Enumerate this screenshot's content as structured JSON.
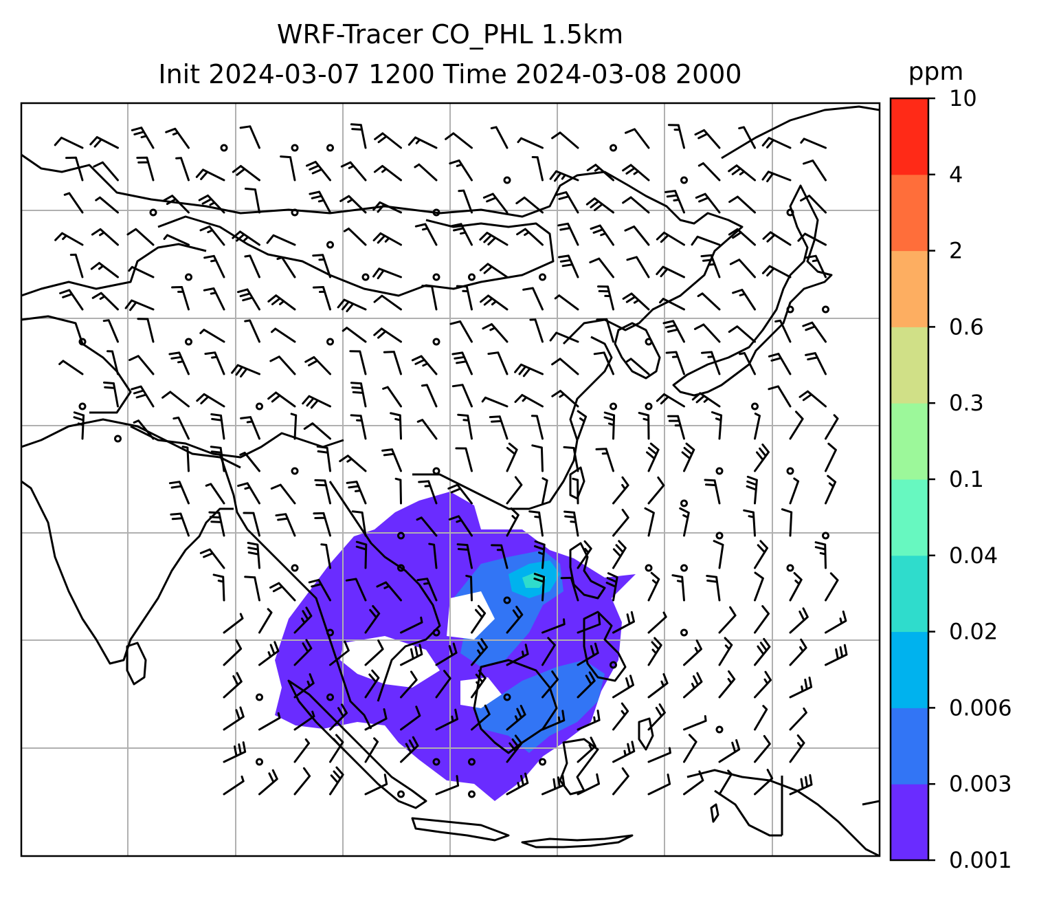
{
  "title": {
    "line1": "WRF-Tracer CO_PHL 1.5km",
    "line2": "Init 2024-03-07 1200 Time 2024-03-08 2000"
  },
  "colorbar": {
    "unit": "ppm",
    "levels": [
      "0.001",
      "0.003",
      "0.006",
      "0.02",
      "0.04",
      "0.1",
      "0.3",
      "0.6",
      "2",
      "4",
      "10"
    ],
    "colors": [
      "#6a2cff",
      "#3275f5",
      "#00b2ee",
      "#2fdccc",
      "#67f8c0",
      "#9cf89a",
      "#d0e087",
      "#fdae61",
      "#ff6e3a",
      "#ff2a17"
    ]
  },
  "map": {
    "gridlines": true,
    "coastline_color": "#000000",
    "wind_barb_color": "#000000",
    "gridline_color": "#b0b0b0"
  }
}
